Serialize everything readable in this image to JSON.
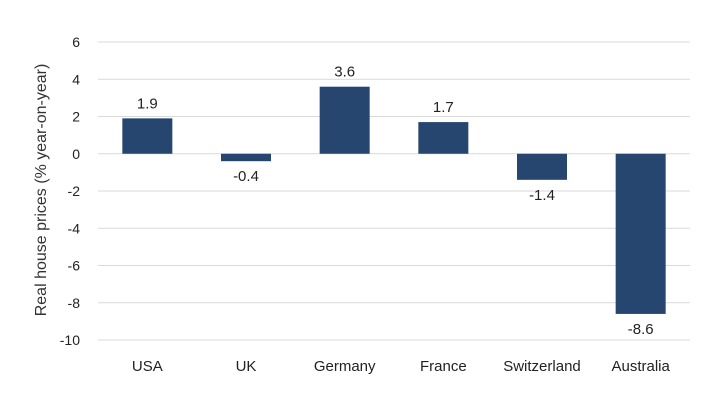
{
  "chart_data": {
    "type": "bar",
    "categories": [
      "USA",
      "UK",
      "Germany",
      "France",
      "Switzerland",
      "Australia"
    ],
    "values": [
      1.9,
      -0.4,
      3.6,
      1.7,
      -1.4,
      -8.6
    ],
    "data_labels": [
      "1.9",
      "-0.4",
      "3.6",
      "1.7",
      "-1.4",
      "-8.6"
    ],
    "title": "",
    "xlabel": "",
    "ylabel": "Real house prices (% year-on-year)",
    "ylim": [
      -10,
      6
    ],
    "yticks": [
      6,
      4,
      2,
      0,
      -2,
      -4,
      -6,
      -8,
      -10
    ],
    "ytick_labels": [
      "6",
      "4",
      "2",
      "0",
      "-2",
      "-4",
      "-6",
      "-8",
      "-10"
    ],
    "grid": true,
    "legend": "none",
    "bar_color": "#26466f",
    "grid_color": "#d9d9d9"
  }
}
